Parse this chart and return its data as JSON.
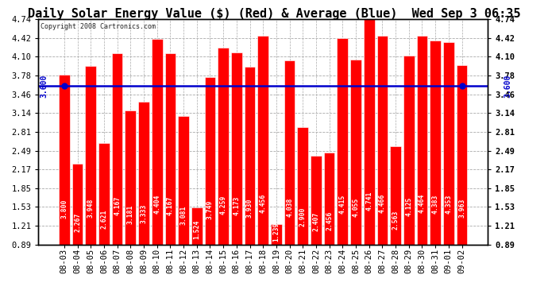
{
  "title": "Daily Solar Energy Value ($) (Red) & Average (Blue)  Wed Sep 3 06:35",
  "copyright": "Copyright 2008 Cartronics.com",
  "categories": [
    "08-03",
    "08-04",
    "08-05",
    "08-06",
    "08-07",
    "08-08",
    "08-09",
    "08-10",
    "08-11",
    "08-12",
    "08-13",
    "08-14",
    "08-15",
    "08-16",
    "08-17",
    "08-18",
    "08-19",
    "08-20",
    "08-21",
    "08-22",
    "08-23",
    "08-24",
    "08-25",
    "08-26",
    "08-27",
    "08-28",
    "08-29",
    "08-30",
    "08-31",
    "09-01",
    "09-02"
  ],
  "values": [
    3.8,
    2.267,
    3.948,
    2.621,
    4.167,
    3.181,
    3.333,
    4.404,
    4.167,
    3.081,
    1.524,
    3.749,
    4.259,
    4.173,
    3.93,
    4.456,
    1.239,
    4.038,
    2.9,
    2.407,
    2.456,
    4.415,
    4.055,
    4.741,
    4.466,
    2.563,
    4.125,
    4.464,
    4.383,
    4.353,
    3.963
  ],
  "average_value": 3.6,
  "bar_color": "#ff0000",
  "average_color": "#0000cc",
  "background_color": "#ffffff",
  "plot_bg_color": "#ffffff",
  "ylim": [
    0.89,
    4.74
  ],
  "yticks": [
    0.89,
    1.21,
    1.53,
    1.85,
    2.17,
    2.49,
    2.81,
    3.14,
    3.46,
    3.78,
    4.1,
    4.42,
    4.74
  ],
  "grid_color": "#aaaaaa",
  "bar_edge_color": "#ffffff",
  "avg_label": "3.600",
  "title_fontsize": 11,
  "tick_fontsize": 7.5,
  "bar_label_fontsize": 5.8,
  "copyright_fontsize": 6.0
}
